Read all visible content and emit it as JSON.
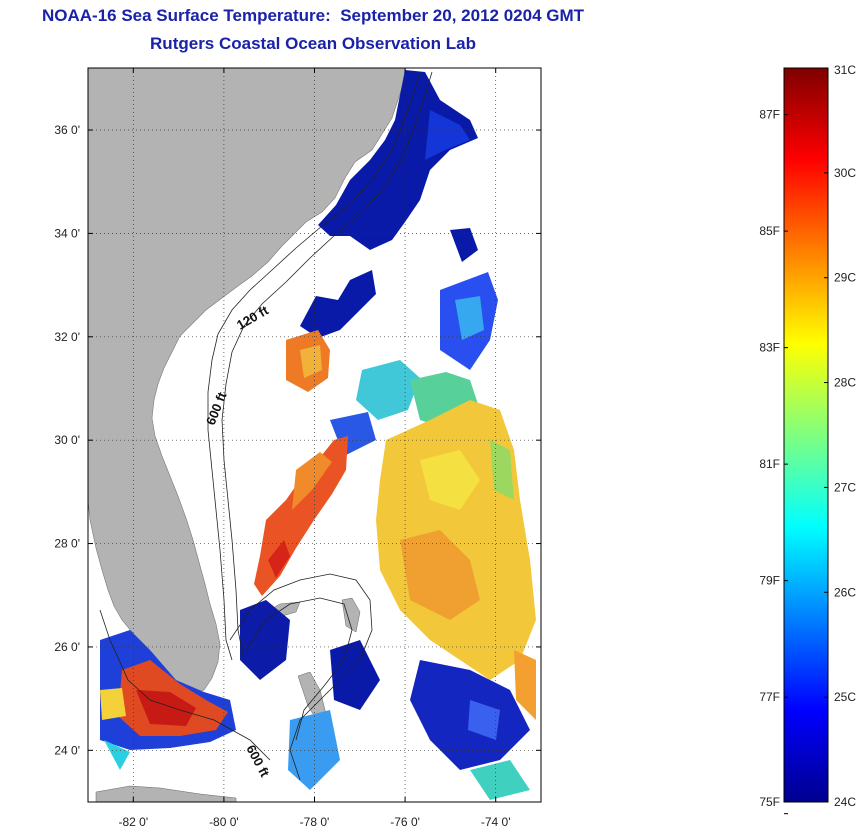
{
  "title": {
    "line1": "NOAA-16 Sea Surface Temperature:  September 20, 2012 0204 GMT",
    "line2": "Rutgers Coastal Ocean Observation Lab"
  },
  "map": {
    "lon_range": [
      -83.0,
      -73.0
    ],
    "lat_range": [
      23.0,
      37.2
    ],
    "lon_ticks": [
      {
        "value": -82,
        "label": "-82 0'"
      },
      {
        "value": -80,
        "label": "-80 0'"
      },
      {
        "value": -78,
        "label": "-78 0'"
      },
      {
        "value": -76,
        "label": "-76 0'"
      },
      {
        "value": -74,
        "label": "-74 0'"
      }
    ],
    "lat_ticks": [
      {
        "value": 24,
        "label": "24 0'"
      },
      {
        "value": 26,
        "label": "26 0'"
      },
      {
        "value": 28,
        "label": "28 0'"
      },
      {
        "value": 30,
        "label": "30 0'"
      },
      {
        "value": 32,
        "label": "32 0'"
      },
      {
        "value": 34,
        "label": "34 0'"
      },
      {
        "value": 36,
        "label": "36 0'"
      }
    ],
    "grid": "dotted",
    "land_color": "#b3b3b3",
    "contour_labels": [
      {
        "text": "120 ft",
        "lon": -79.45,
        "lat": 32.2
      },
      {
        "text": "600 ft",
        "lon": -80.2,
        "lat": 30.9
      },
      {
        "text": "600 ft",
        "lon": -79.4,
        "lat": 23.8
      }
    ]
  },
  "colorbar": {
    "celsius_range": [
      24,
      31
    ],
    "celsius_labels": [
      "31C",
      "30C",
      "29C",
      "28C",
      "27C",
      "26C",
      "25C",
      "24C"
    ],
    "fahrenheit_labels": [
      {
        "value": 87,
        "label": "87F"
      },
      {
        "value": 85,
        "label": "85F"
      },
      {
        "value": 83,
        "label": "83F"
      },
      {
        "value": 81,
        "label": "81F"
      },
      {
        "value": 79,
        "label": "79F"
      },
      {
        "value": 77,
        "label": "77F"
      },
      {
        "value": 75,
        "label": "75F"
      }
    ],
    "colormap": "jet"
  }
}
